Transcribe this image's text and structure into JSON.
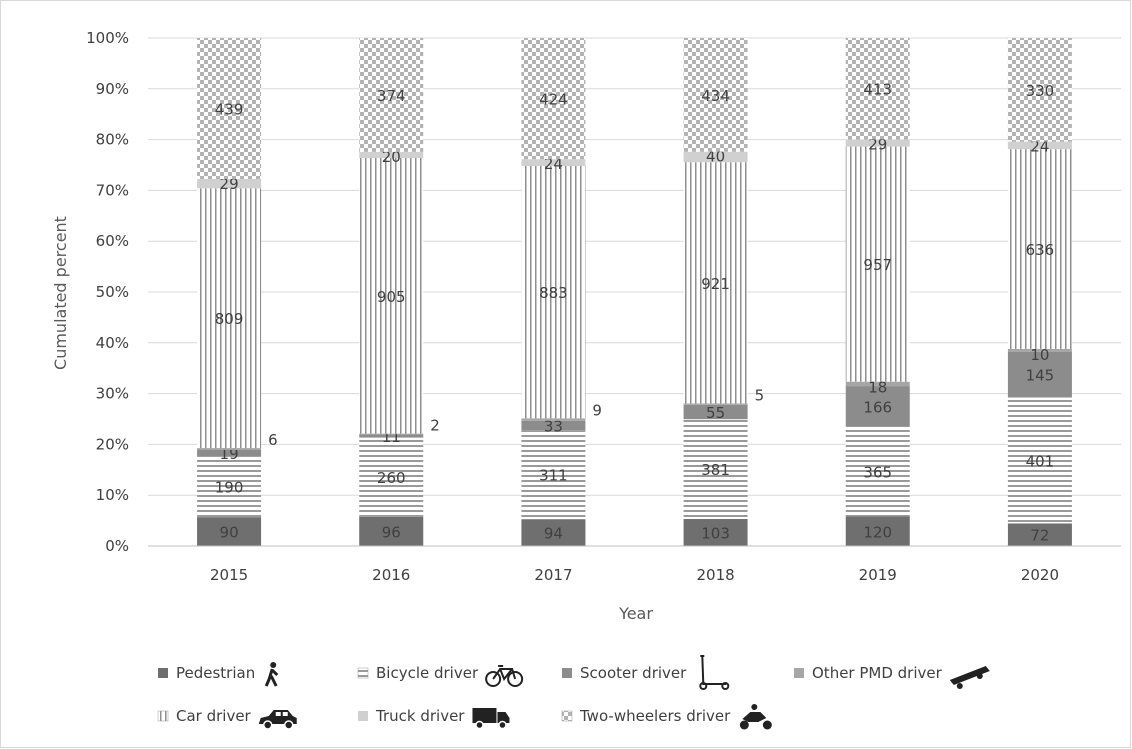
{
  "chart_data": {
    "type": "bar",
    "stacked": true,
    "normalized": true,
    "xlabel": "Year",
    "ylabel": "Cumulated percent",
    "ylim": [
      0,
      100
    ],
    "y_ticks": [
      "0%",
      "10%",
      "20%",
      "30%",
      "40%",
      "50%",
      "60%",
      "70%",
      "80%",
      "90%",
      "100%"
    ],
    "grid": true,
    "legend_position": "bottom",
    "categories": [
      "2015",
      "2016",
      "2017",
      "2018",
      "2019",
      "2020"
    ],
    "series": [
      {
        "name": "Pedestrian",
        "values": [
          90,
          96,
          94,
          103,
          120,
          72
        ],
        "color": "#6f6f6f",
        "pattern": "solid",
        "icon": "pedestrian-icon"
      },
      {
        "name": "Bicycle driver",
        "values": [
          190,
          260,
          311,
          381,
          365,
          401
        ],
        "color": "#9a9a9a",
        "pattern": "horizontal-lines",
        "icon": "bicycle-icon"
      },
      {
        "name": "Scooter driver",
        "values": [
          19,
          11,
          33,
          55,
          166,
          145
        ],
        "color": "#8c8c8c",
        "pattern": "solid",
        "icon": "scooter-icon"
      },
      {
        "name": "Other PMD driver",
        "values": [
          6,
          2,
          9,
          5,
          18,
          10
        ],
        "color": "#a6a6a6",
        "pattern": "solid",
        "icon": "skateboard-icon"
      },
      {
        "name": "Car driver",
        "values": [
          809,
          905,
          883,
          921,
          957,
          636
        ],
        "color": "#a0a0a0",
        "pattern": "vertical-lines",
        "icon": "car-icon"
      },
      {
        "name": "Truck driver",
        "values": [
          29,
          20,
          24,
          40,
          29,
          24
        ],
        "color": "#d0d0d0",
        "pattern": "solid",
        "icon": "truck-icon"
      },
      {
        "name": "Two-wheelers driver",
        "values": [
          439,
          374,
          424,
          434,
          413,
          330
        ],
        "color": "#a8a8a8",
        "pattern": "checkerboard",
        "icon": "motorcycle-icon"
      }
    ],
    "outside_labels": {
      "series": "Other PMD driver",
      "years": [
        "2015",
        "2016",
        "2017",
        "2018"
      ]
    }
  }
}
